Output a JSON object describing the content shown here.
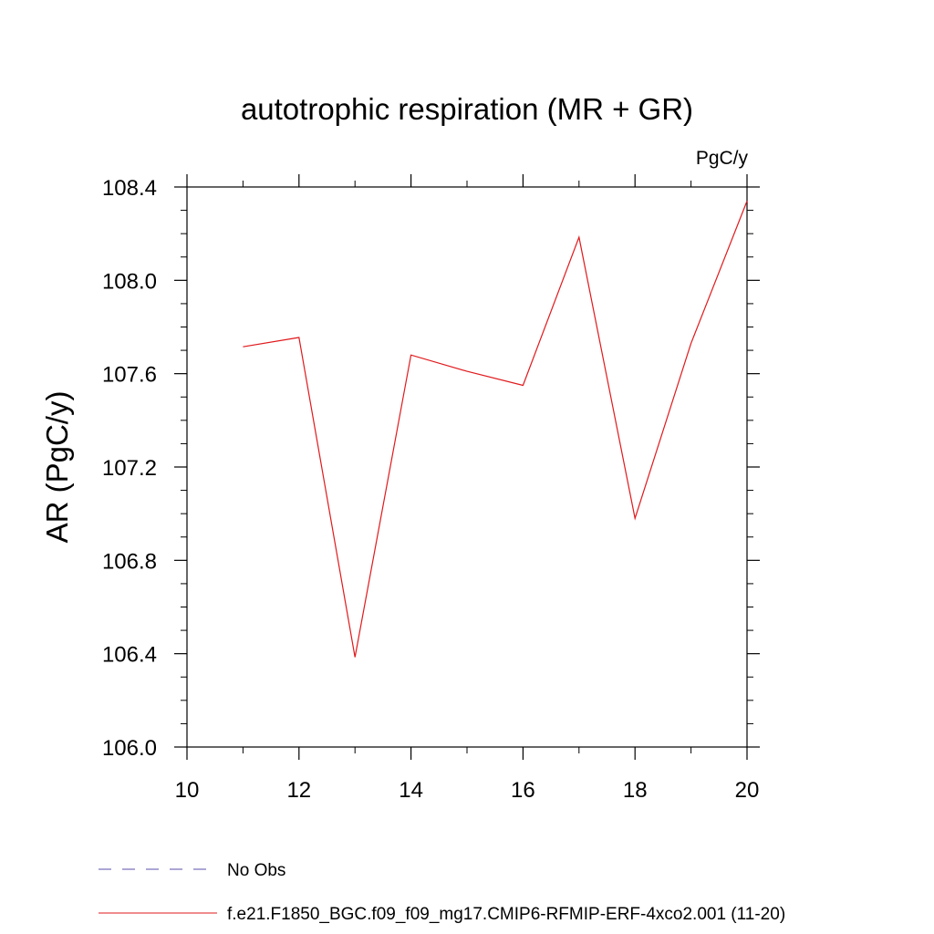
{
  "chart_data": {
    "type": "line",
    "title": "autotrophic respiration (MR + GR)",
    "units_label": "PgC/y",
    "xlabel": "",
    "ylabel": "AR  (PgC/y)",
    "xlim": [
      10,
      20
    ],
    "ylim": [
      106.0,
      108.4
    ],
    "x_ticks": [
      10,
      12,
      14,
      16,
      18,
      20
    ],
    "y_ticks": [
      "106.0",
      "106.4",
      "106.8",
      "107.2",
      "107.6",
      "108.0",
      "108.4"
    ],
    "grid": false,
    "legend_position": "bottom",
    "series": [
      {
        "name": "f.e21.F1850_BGC.f09_f09_mg17.CMIP6-RFMIP-ERF-4xco2.001 (11-20)",
        "color": "#e0191c",
        "line_style": "solid",
        "x": [
          11,
          12,
          13,
          14,
          15,
          16,
          17,
          18,
          19,
          20
        ],
        "y": [
          107.715,
          107.755,
          106.385,
          107.68,
          107.61,
          107.55,
          108.185,
          106.98,
          107.73,
          108.34
        ]
      }
    ],
    "legend": [
      {
        "label": "No Obs",
        "color": "#5a4fa8",
        "line_style": "dashed"
      },
      {
        "label": "f.e21.F1850_BGC.f09_f09_mg17.CMIP6-RFMIP-ERF-4xco2.001 (11-20)",
        "color": "#e0191c",
        "line_style": "solid"
      }
    ]
  }
}
